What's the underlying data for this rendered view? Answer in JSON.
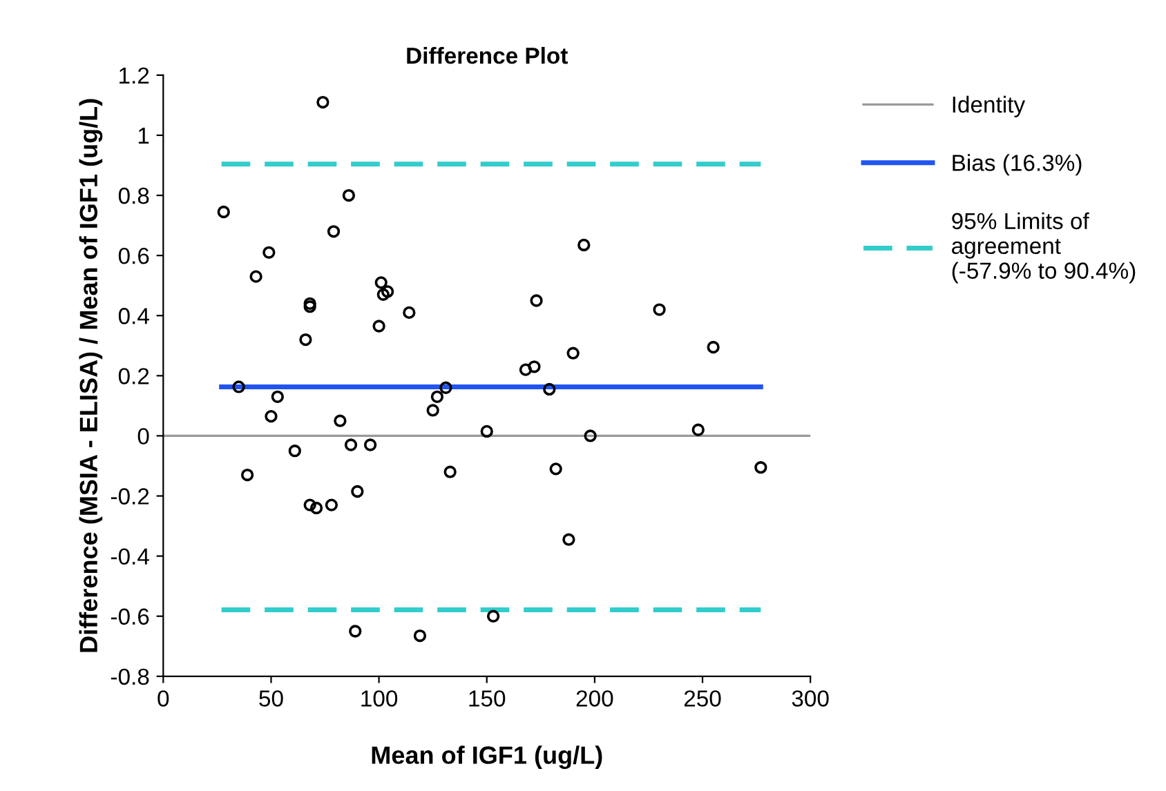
{
  "chart_data": {
    "type": "scatter",
    "title": "Difference Plot",
    "xlabel": "Mean of IGF1 (ug/L)",
    "ylabel": "Difference (MSIA - ELISA) / Mean of IGF1 (ug/L)",
    "xlim": [
      0,
      300
    ],
    "xticks": [
      0,
      50,
      100,
      150,
      200,
      250,
      300
    ],
    "ylim": [
      -0.8,
      1.2
    ],
    "yticks": [
      -0.8,
      -0.6,
      -0.4,
      -0.2,
      0,
      0.2,
      0.4,
      0.6,
      0.8,
      1,
      1.2
    ],
    "grid": false,
    "legend": "right",
    "series": [
      {
        "type": "line",
        "name": "Identity",
        "color": "#999999",
        "line_style": "solid",
        "marker": "none",
        "x": [
          0,
          300
        ],
        "values": [
          0,
          0
        ]
      },
      {
        "type": "line",
        "name": "Bias (16.3%)",
        "color": "#2255ee",
        "line_style": "solid",
        "marker": "none",
        "x": [
          27,
          277
        ],
        "values": [
          0.163,
          0.163
        ]
      },
      {
        "type": "line",
        "name": "95% Limits of\nagreement\n(-57.9% to 90.4%)",
        "color": "#33cccc",
        "line_style": "dashed",
        "marker": "none",
        "x": [
          27,
          277
        ],
        "values": [
          0.904,
          0.904
        ]
      },
      {
        "type": "line",
        "color": "#33cccc",
        "line_style": "dashed",
        "marker": "none",
        "x": [
          27,
          277
        ],
        "values": [
          -0.579,
          -0.579
        ]
      },
      {
        "color": "#000000",
        "marker": "circle",
        "x": [
          28,
          35,
          39,
          43,
          49,
          50,
          53,
          61,
          66,
          68,
          68,
          68,
          71,
          74,
          78,
          79,
          82,
          86,
          87,
          89,
          90,
          96,
          100,
          101,
          102,
          104,
          114,
          119,
          125,
          127,
          131,
          133,
          150,
          153,
          168,
          172,
          173,
          179,
          182,
          188,
          190,
          195,
          198,
          230,
          248,
          255,
          277
        ],
        "values": [
          0.745,
          0.163,
          -0.13,
          0.53,
          0.61,
          0.065,
          0.13,
          -0.05,
          0.32,
          0.44,
          0.43,
          -0.23,
          -0.24,
          1.11,
          -0.23,
          0.68,
          0.05,
          0.8,
          -0.03,
          -0.65,
          -0.185,
          -0.03,
          0.365,
          0.51,
          0.47,
          0.48,
          0.41,
          -0.665,
          0.085,
          0.13,
          0.16,
          -0.12,
          0.015,
          -0.6,
          0.22,
          0.23,
          0.45,
          0.155,
          -0.11,
          -0.345,
          0.275,
          0.635,
          0.0,
          0.42,
          0.02,
          0.295,
          -0.105
        ]
      }
    ]
  }
}
